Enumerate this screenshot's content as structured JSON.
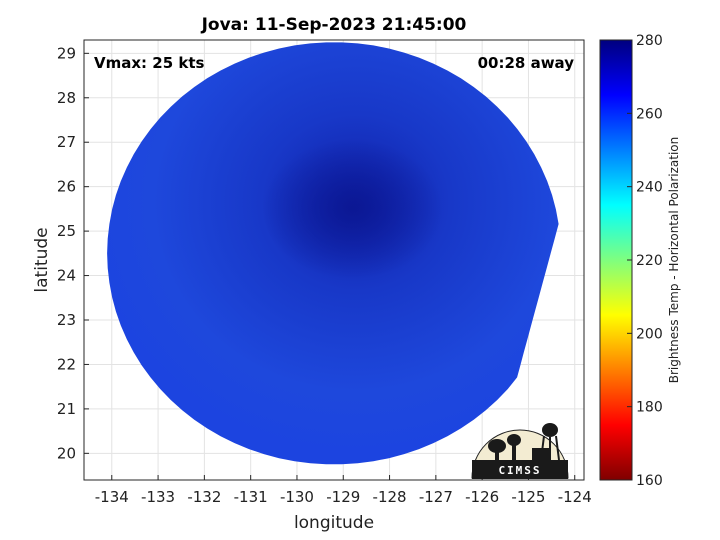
{
  "chart_data": {
    "type": "heatmap",
    "title": "Jova: 11-Sep-2023 21:45:00",
    "xlabel": "longitude",
    "ylabel": "latitude",
    "xlim": [
      -134.6,
      -123.8
    ],
    "ylim": [
      19.4,
      29.3
    ],
    "xticks": [
      -134,
      -133,
      -132,
      -131,
      -130,
      -129,
      -128,
      -127,
      -126,
      -125,
      -124
    ],
    "yticks": [
      20,
      21,
      22,
      23,
      24,
      25,
      26,
      27,
      28,
      29
    ],
    "grid": true,
    "annotations": {
      "top_left": "Vmax: 25 kts",
      "top_right": "00:28 away"
    },
    "colorbar": {
      "label": "Brightness Temp - Horizontal Polarization",
      "range": [
        160,
        280
      ],
      "ticks": [
        160,
        180,
        200,
        220,
        240,
        260,
        280
      ],
      "colormap": "jet"
    },
    "swath": {
      "center": [
        -129.2,
        24.5
      ],
      "value_range": [
        250,
        270
      ],
      "storm_center": [
        -128.8,
        25.5
      ],
      "storm_max_value": 270
    },
    "logo_text": "CIMSS"
  }
}
